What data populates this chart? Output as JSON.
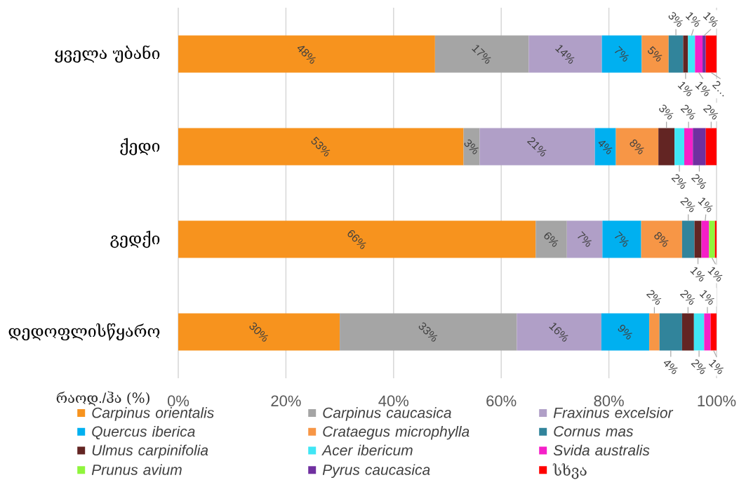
{
  "chart_data": {
    "type": "bar",
    "orientation": "horizontal",
    "stacked": true,
    "categories": [
      "ყველა უბანი",
      "ქედი",
      "გედქი",
      "დედოფლისწყარო"
    ],
    "xlabel": "რაოდ./ჰა (%)",
    "xlim": [
      0,
      100
    ],
    "xticks": [
      {
        "value": 0,
        "label": "0%"
      },
      {
        "value": 20,
        "label": "20%"
      },
      {
        "value": 40,
        "label": "40%"
      },
      {
        "value": 60,
        "label": "60%"
      },
      {
        "value": 80,
        "label": "80%"
      },
      {
        "value": 100,
        "label": "100%"
      }
    ],
    "grid": "x",
    "legend": "bottom",
    "series": [
      {
        "name": "Carpinus orientalis",
        "color": "#f7931e",
        "values": [
          47.7,
          53.0,
          66.4,
          30.0
        ],
        "value_labels": [
          "48%",
          "53%",
          "66%",
          "30%"
        ]
      },
      {
        "name": "Carpinus caucasica",
        "color": "#a5a5a5",
        "values": [
          17.4,
          3.0,
          5.8,
          32.9
        ],
        "value_labels": [
          "17%",
          "3%",
          "6%",
          "33%"
        ]
      },
      {
        "name": "Fraxinus excelsior",
        "color": "#b09fc7",
        "values": [
          13.6,
          21.4,
          6.6,
          15.7
        ],
        "value_labels": [
          "14%",
          "21%",
          "7%",
          "16%"
        ]
      },
      {
        "name": "Quercus iberica",
        "color": "#00b0f0",
        "values": [
          7.4,
          3.9,
          7.2,
          8.9
        ],
        "value_labels": [
          "7%",
          "4%",
          "7%",
          "9%"
        ]
      },
      {
        "name": "Crataegus microphylla",
        "color": "#f79646",
        "values": [
          5.0,
          7.9,
          7.6,
          1.9
        ],
        "value_labels": [
          "5%",
          "8%",
          "8%",
          "2%"
        ]
      },
      {
        "name": "Cornus mas",
        "color": "#31849b",
        "values": [
          2.7,
          null,
          2.3,
          4.2
        ],
        "value_labels": [
          "3%",
          null,
          "2%",
          "4%"
        ]
      },
      {
        "name": "Ulmus carpinifolia",
        "color": "#632523",
        "values": [
          0.9,
          3.0,
          1.3,
          2.2
        ],
        "value_labels": [
          "1%",
          "3%",
          "1%",
          "2%"
        ]
      },
      {
        "name": "Acer ibericum",
        "color": "#40e6f5",
        "values": [
          1.3,
          1.8,
          null,
          1.9
        ],
        "value_labels": [
          "1%",
          "2%",
          null,
          "2%"
        ]
      },
      {
        "name": "Svida australis",
        "color": "#f520c8",
        "values": [
          1.4,
          1.6,
          1.4,
          1.2
        ],
        "value_labels": [
          "1%",
          "2%",
          "1%",
          "1%"
        ]
      },
      {
        "name": "Prunus avium",
        "color": "#8ff53c",
        "values": [
          null,
          null,
          1.1,
          null
        ],
        "value_labels": [
          null,
          null,
          "1%",
          null
        ]
      },
      {
        "name": "Pyrus caucasica",
        "color": "#7030a0",
        "values": [
          0.6,
          2.4,
          null,
          null
        ],
        "value_labels": [
          "1%",
          "2%",
          null,
          null
        ]
      },
      {
        "name": "სხვა",
        "color": "#ff0000",
        "values": [
          2.0,
          2.0,
          0.3,
          1.1
        ],
        "value_labels": [
          "2…",
          "2%",
          null,
          "1%"
        ]
      }
    ]
  }
}
